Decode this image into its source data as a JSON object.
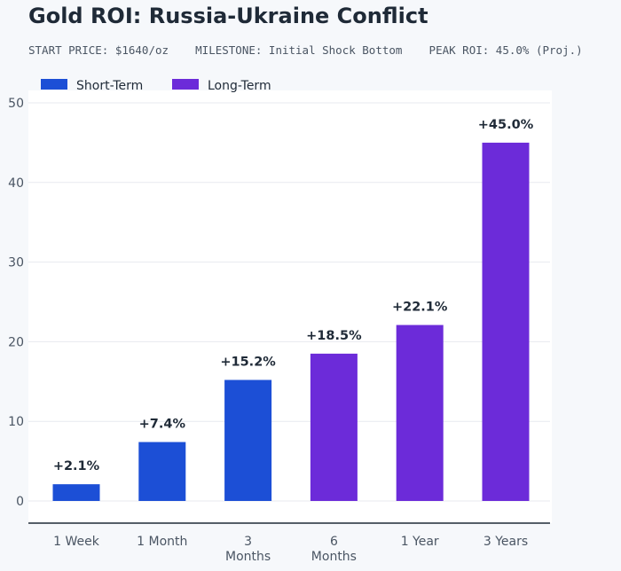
{
  "header": {
    "title": "Gold ROI: Russia-Ukraine Conflict",
    "subtitle": "START PRICE: $1640/oz    MILESTONE: Initial Shock Bottom    PEAK ROI: 45.0% (Proj.)"
  },
  "chart_data": {
    "type": "bar",
    "title": "Gold ROI: Russia-Ukraine Conflict",
    "xlabel": "",
    "ylabel": "",
    "ylim": [
      0,
      50
    ],
    "yticks": [
      0,
      10,
      20,
      30,
      40,
      50
    ],
    "grid": true,
    "legend_position": "top-left",
    "categories": [
      {
        "lines": [
          "1 Week"
        ]
      },
      {
        "lines": [
          "1 Month"
        ]
      },
      {
        "lines": [
          "3",
          "Months"
        ]
      },
      {
        "lines": [
          "6",
          "Months"
        ]
      },
      {
        "lines": [
          "1 Year"
        ]
      },
      {
        "lines": [
          "3 Years"
        ]
      }
    ],
    "values": [
      2.1,
      7.4,
      15.2,
      18.5,
      22.1,
      45.0
    ],
    "labels": [
      "+2.1%",
      "+7.4%",
      "+15.2%",
      "+18.5%",
      "+22.1%",
      "+45.0%"
    ],
    "groups": [
      "Short-Term",
      "Short-Term",
      "Short-Term",
      "Long-Term",
      "Long-Term",
      "Long-Term"
    ],
    "legend": [
      {
        "name": "Short-Term",
        "color": "#1c4fd6"
      },
      {
        "name": "Long-Term",
        "color": "#6c2bd9"
      }
    ]
  }
}
